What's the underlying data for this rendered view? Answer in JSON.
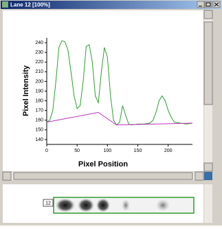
{
  "window": {
    "title": "Lane 12 [100%]"
  },
  "chart_data": {
    "type": "line",
    "xlabel": "Pixel Position",
    "ylabel": "Pixel Intensity",
    "xlim": [
      0,
      240
    ],
    "ylim": [
      135,
      245
    ],
    "xticks": [
      0,
      50,
      100,
      150,
      200
    ],
    "yticks": [
      140,
      150,
      160,
      170,
      180,
      190,
      200,
      210,
      220,
      230,
      240
    ],
    "series": [
      {
        "color": "#2e9e2e",
        "x": [
          0,
          5,
          10,
          15,
          20,
          25,
          30,
          35,
          40,
          45,
          50,
          55,
          60,
          65,
          70,
          75,
          80,
          85,
          90,
          95,
          100,
          105,
          110,
          115,
          120,
          125,
          130,
          135,
          140,
          150,
          160,
          170,
          175,
          180,
          185,
          190,
          195,
          200,
          205,
          210,
          220,
          230,
          240
        ],
        "values": [
          158,
          160,
          170,
          200,
          235,
          242,
          241,
          232,
          210,
          185,
          172,
          175,
          200,
          236,
          238,
          220,
          185,
          178,
          210,
          235,
          225,
          185,
          160,
          155,
          158,
          175,
          165,
          156,
          155,
          156,
          156,
          157,
          160,
          168,
          180,
          185,
          180,
          170,
          163,
          158,
          157,
          156,
          157
        ]
      },
      {
        "color": "#c030c0",
        "x": [
          0,
          85,
          115,
          240
        ],
        "values": [
          158,
          168,
          155,
          157
        ]
      }
    ]
  },
  "lane": {
    "label": "12"
  }
}
